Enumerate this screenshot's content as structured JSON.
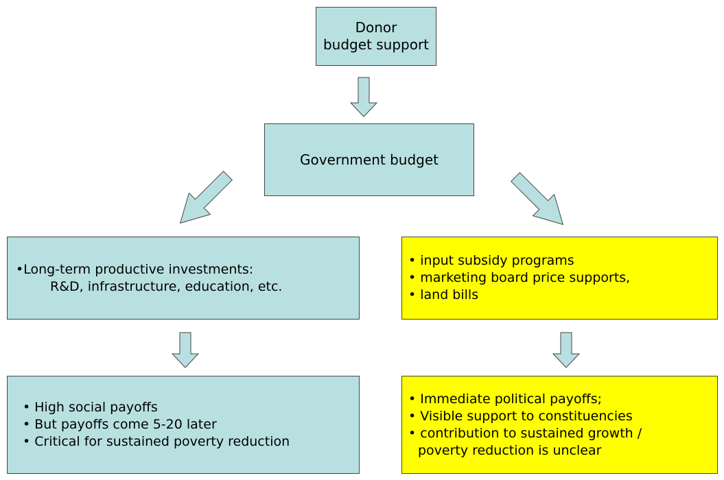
{
  "nodes": [
    {
      "lines": [
        "Donor",
        "budget support"
      ]
    },
    {
      "lines": [
        "Government budget"
      ]
    },
    {
      "lines": [
        "•Long-term productive investments:",
        "R&D, infrastructure, education, etc."
      ]
    },
    {
      "lines": [
        "• input subsidy programs",
        "• marketing board price supports,",
        "• land bills"
      ]
    },
    {
      "lines": [
        "• High social payoffs",
        "• But payoffs come 5-20 later",
        "• Critical for sustained poverty reduction"
      ]
    },
    {
      "lines": [
        "• Immediate political payoffs;",
        "• Visible support to constituencies",
        "• contribution to sustained growth /",
        "poverty reduction is unclear"
      ]
    }
  ]
}
